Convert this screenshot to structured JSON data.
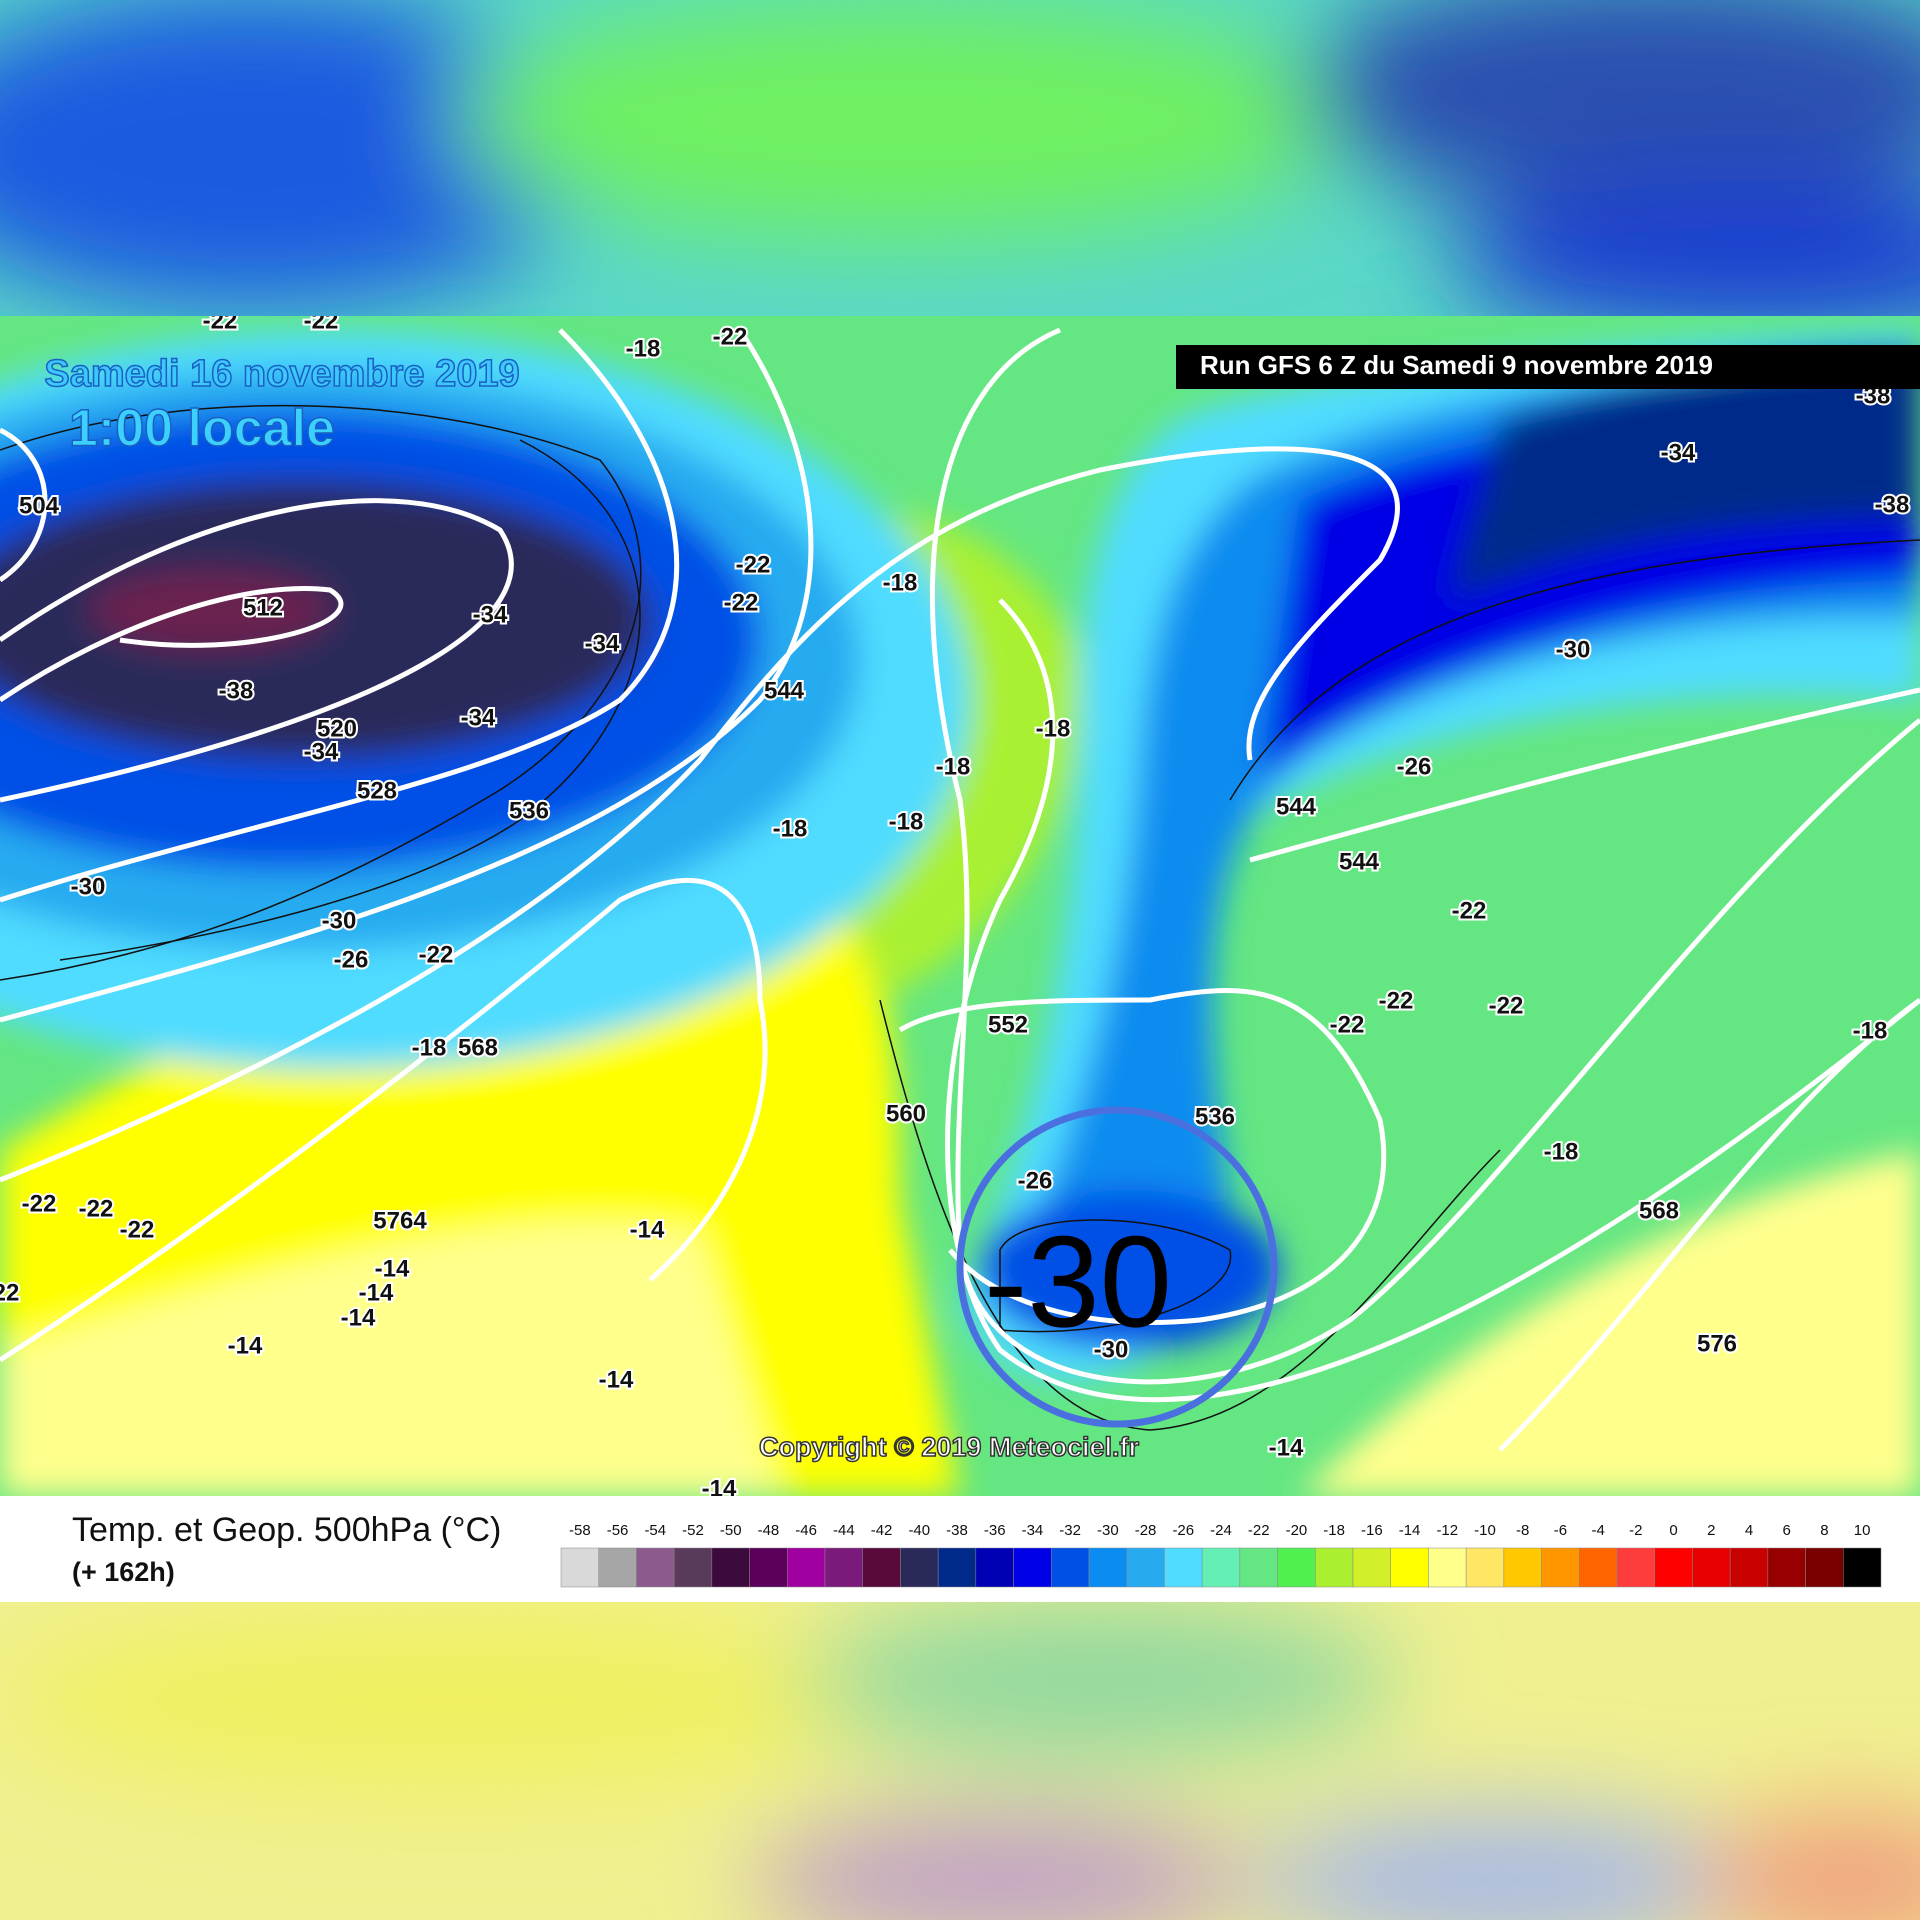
{
  "header": {
    "date": "Samedi 16 novembre 2019",
    "time": "1:00 locale",
    "run": "Run GFS 6 Z du Samedi 9 novembre 2019"
  },
  "map_labels": [
    "-22",
    "-22",
    "-18",
    "-22",
    "504",
    "512",
    "-34",
    "-34",
    "-38",
    "-34",
    "520",
    "-34",
    "528",
    "536",
    "-30",
    "-30",
    "-26",
    "-22",
    "-18",
    "568",
    "-22",
    "-22",
    "-18",
    "544",
    "-18",
    "-18",
    "-18",
    "-18",
    "552",
    "560",
    "536",
    "-26",
    "-30",
    "-22",
    "-22",
    "-22",
    "22",
    "5764",
    "-14",
    "-14",
    "-14",
    "-14",
    "-14",
    "-14",
    "-14",
    "-14",
    "-34",
    "-38",
    "-38",
    "-30",
    "-26",
    "544",
    "544",
    "-22",
    "-22",
    "-22",
    "-22",
    "-18",
    "-18",
    "568",
    "576"
  ],
  "annotation": "-30",
  "copyright": "Copyright © 2019 Meteociel.fr",
  "legend": {
    "title": "Temp. et Geop. 500hPa (°C)",
    "lead": "(+ 162h)",
    "scale": [
      -58,
      -56,
      -54,
      -52,
      -50,
      -48,
      -46,
      -44,
      -42,
      -40,
      -38,
      -36,
      -34,
      -32,
      -30,
      -28,
      -26,
      -24,
      -22,
      -20,
      -18,
      -16,
      -14,
      -12,
      -10,
      -8,
      -6,
      -4,
      -2,
      0,
      2,
      4,
      6,
      8,
      10
    ],
    "colors": [
      "#d9d9d9",
      "#a6a6a6",
      "#8c5a8c",
      "#5a3a5a",
      "#3c0a3c",
      "#5a005a",
      "#a000a0",
      "#7a1a7a",
      "#5a0a3a",
      "#2a2a5a",
      "#002a8a",
      "#0000b4",
      "#0000e6",
      "#0050e6",
      "#0a8cf0",
      "#28aaf0",
      "#50dcff",
      "#64f0b4",
      "#64e682",
      "#50f050",
      "#aaf030",
      "#d2f02a",
      "#ffff00",
      "#ffff8c",
      "#ffe664",
      "#ffc800",
      "#ff9600",
      "#ff6400",
      "#ff3c3c",
      "#ff0000",
      "#e60000",
      "#c80000",
      "#960000",
      "#780000",
      "#000000"
    ]
  }
}
